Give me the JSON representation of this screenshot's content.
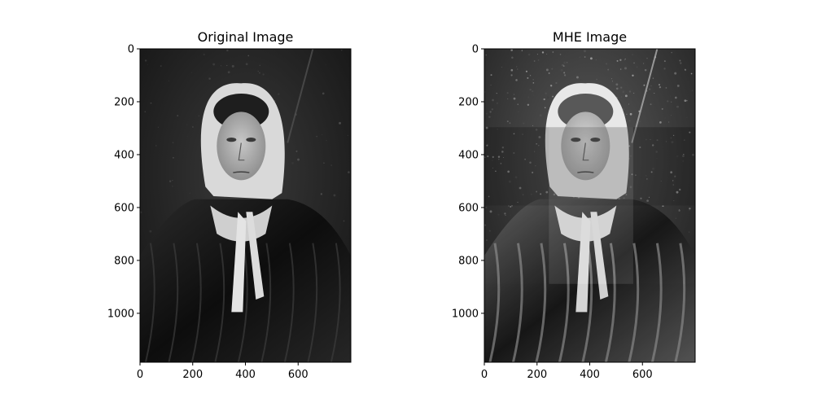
{
  "panels": [
    {
      "title": "Original Image",
      "variant": "original",
      "x_ticks": [
        0,
        200,
        400,
        600
      ],
      "y_ticks": [
        0,
        200,
        400,
        600,
        800,
        1000
      ],
      "x_range": [
        0,
        800
      ],
      "y_range": [
        0,
        1185
      ]
    },
    {
      "title": "MHE Image",
      "variant": "mhe",
      "x_ticks": [
        0,
        200,
        400,
        600
      ],
      "y_ticks": [
        0,
        200,
        400,
        600,
        800,
        1000
      ],
      "x_range": [
        0,
        800
      ],
      "y_range": [
        0,
        1185
      ]
    }
  ],
  "colors": {
    "background": "#ffffff",
    "axis": "#000000"
  }
}
